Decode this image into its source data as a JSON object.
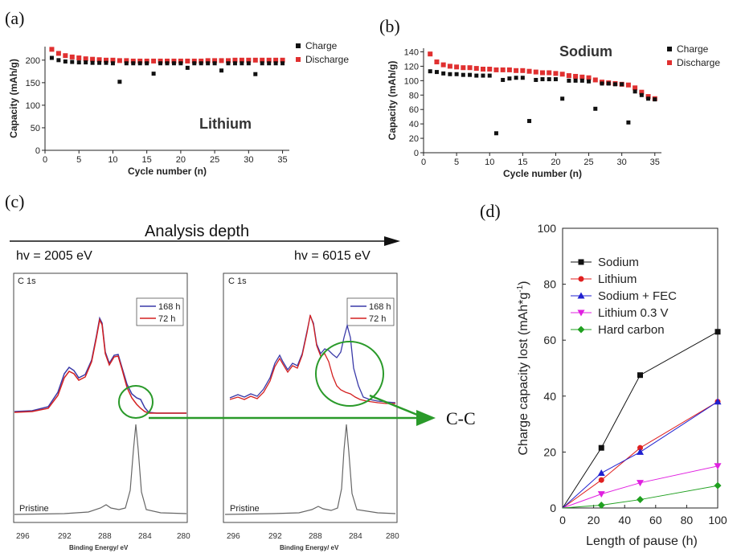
{
  "panel_labels": {
    "a": "(a)",
    "b": "(b)",
    "c": "(c)",
    "d": "(d)"
  },
  "colors": {
    "charge": "#111111",
    "discharge": "#e03030",
    "red": "#d42020",
    "blue": "#3a3aa8",
    "green": "#28a028",
    "gray": "#555555"
  },
  "panel_c": {
    "analysis_depth": "Analysis depth",
    "hv_low": "hv = 2005 eV",
    "hv_high": "hv = 6015 eV",
    "cc_label": "C-C",
    "left_box": {
      "title": "C 1s",
      "legend": [
        "168 h",
        "72 h"
      ],
      "pristine": "Pristine",
      "xlabel": "Binding Energy/ eV",
      "ticks": [
        "296",
        "292",
        "288",
        "284",
        "280"
      ]
    },
    "right_box": {
      "title": "C 1s",
      "legend": [
        "168 h",
        "72 h"
      ],
      "pristine": "Pristine",
      "xlabel": "Binding Energy/ eV",
      "ticks": [
        "296",
        "292",
        "288",
        "284",
        "280"
      ]
    }
  },
  "chart_data": [
    {
      "id": "a",
      "type": "scatter",
      "big_label": "Lithium",
      "xlabel": "Cycle number (n)",
      "ylabel": "Capacity (mAh/g)",
      "xlim": [
        0,
        36
      ],
      "ylim": [
        0,
        230
      ],
      "xticks": [
        0,
        5,
        10,
        15,
        20,
        25,
        30,
        35
      ],
      "yticks": [
        0,
        50,
        100,
        150,
        200
      ],
      "legend_position": "top-right",
      "series": [
        {
          "name": "Charge",
          "x": [
            1,
            2,
            3,
            4,
            5,
            6,
            7,
            8,
            9,
            10,
            11,
            12,
            13,
            14,
            15,
            16,
            17,
            18,
            19,
            20,
            21,
            22,
            23,
            24,
            25,
            26,
            27,
            28,
            29,
            30,
            31,
            32,
            33,
            34,
            35
          ],
          "values": [
            205,
            200,
            197,
            196,
            195,
            195,
            194,
            194,
            194,
            193,
            152,
            193,
            193,
            193,
            193,
            170,
            193,
            193,
            193,
            193,
            183,
            193,
            193,
            193,
            193,
            177,
            193,
            193,
            193,
            193,
            169,
            193,
            193,
            193,
            193
          ]
        },
        {
          "name": "Discharge",
          "x": [
            1,
            2,
            3,
            4,
            5,
            6,
            7,
            8,
            9,
            10,
            11,
            12,
            13,
            14,
            15,
            16,
            17,
            18,
            19,
            20,
            21,
            22,
            23,
            24,
            25,
            26,
            27,
            28,
            29,
            30,
            31,
            32,
            33,
            34,
            35
          ],
          "values": [
            224,
            215,
            210,
            207,
            205,
            203,
            202,
            201,
            200,
            200,
            199,
            199,
            198,
            198,
            198,
            198,
            198,
            198,
            198,
            198,
            198,
            198,
            198,
            199,
            199,
            199,
            199,
            200,
            200,
            200,
            200,
            200,
            200,
            200,
            200
          ]
        }
      ]
    },
    {
      "id": "b",
      "type": "scatter",
      "big_label": "Sodium",
      "xlabel": "Cycle number (n)",
      "ylabel": "Capacity (mAh/g)",
      "xlim": [
        0,
        36
      ],
      "ylim": [
        0,
        145
      ],
      "xticks": [
        0,
        5,
        10,
        15,
        20,
        25,
        30,
        35
      ],
      "yticks": [
        0,
        20,
        40,
        60,
        80,
        100,
        120,
        140
      ],
      "legend_position": "top-right",
      "series": [
        {
          "name": "Charge",
          "x": [
            1,
            2,
            3,
            4,
            5,
            6,
            7,
            8,
            9,
            10,
            11,
            12,
            13,
            14,
            15,
            16,
            17,
            18,
            19,
            20,
            21,
            22,
            23,
            24,
            25,
            26,
            27,
            28,
            29,
            30,
            31,
            32,
            33,
            34,
            35
          ],
          "values": [
            113,
            112,
            110,
            109,
            109,
            108,
            108,
            107,
            107,
            107,
            27,
            101,
            103,
            104,
            104,
            44,
            101,
            102,
            102,
            102,
            75,
            100,
            100,
            100,
            99,
            61,
            96,
            96,
            95,
            95,
            42,
            85,
            80,
            75,
            74
          ]
        },
        {
          "name": "Discharge",
          "x": [
            1,
            2,
            3,
            4,
            5,
            6,
            7,
            8,
            9,
            10,
            11,
            12,
            13,
            14,
            15,
            16,
            17,
            18,
            19,
            20,
            21,
            22,
            23,
            24,
            25,
            26,
            27,
            28,
            29,
            30,
            31,
            32,
            33,
            34,
            35
          ],
          "values": [
            137,
            126,
            122,
            120,
            119,
            118,
            118,
            117,
            116,
            116,
            115,
            115,
            115,
            114,
            114,
            113,
            112,
            111,
            111,
            110,
            109,
            107,
            106,
            105,
            104,
            101,
            98,
            97,
            96,
            95,
            94,
            90,
            84,
            78,
            75
          ]
        }
      ]
    },
    {
      "id": "d",
      "type": "line",
      "xlabel": "Length of pause (h)",
      "ylabel": "Charge capacity lost (mAh*g",
      "ylabel_sup": "-1",
      "ylabel_end": ")",
      "xlim": [
        0,
        100
      ],
      "ylim": [
        0,
        100
      ],
      "xticks": [
        0,
        20,
        40,
        60,
        80,
        100
      ],
      "yticks": [
        0,
        20,
        40,
        60,
        80,
        100
      ],
      "legend_position": "top-left",
      "series": [
        {
          "name": "Sodium",
          "marker": "square",
          "color": "#111111",
          "x": [
            0,
            25,
            50,
            100
          ],
          "values": [
            0,
            21.5,
            47.5,
            63
          ]
        },
        {
          "name": "Lithium",
          "marker": "circle",
          "color": "#e02020",
          "x": [
            0,
            25,
            50,
            100
          ],
          "values": [
            0,
            10,
            21.5,
            38
          ]
        },
        {
          "name": "Sodium + FEC",
          "marker": "triangle-up",
          "color": "#2020d0",
          "x": [
            0,
            25,
            50,
            100
          ],
          "values": [
            0,
            12.5,
            20,
            38
          ]
        },
        {
          "name": "Lithium 0.3 V",
          "marker": "triangle-down",
          "color": "#e020e0",
          "x": [
            0,
            25,
            50,
            100
          ],
          "values": [
            0,
            5,
            9,
            15
          ]
        },
        {
          "name": "Hard carbon",
          "marker": "diamond",
          "color": "#20a020",
          "x": [
            0,
            25,
            50,
            100
          ],
          "values": [
            0,
            1,
            3,
            8
          ]
        }
      ]
    }
  ]
}
